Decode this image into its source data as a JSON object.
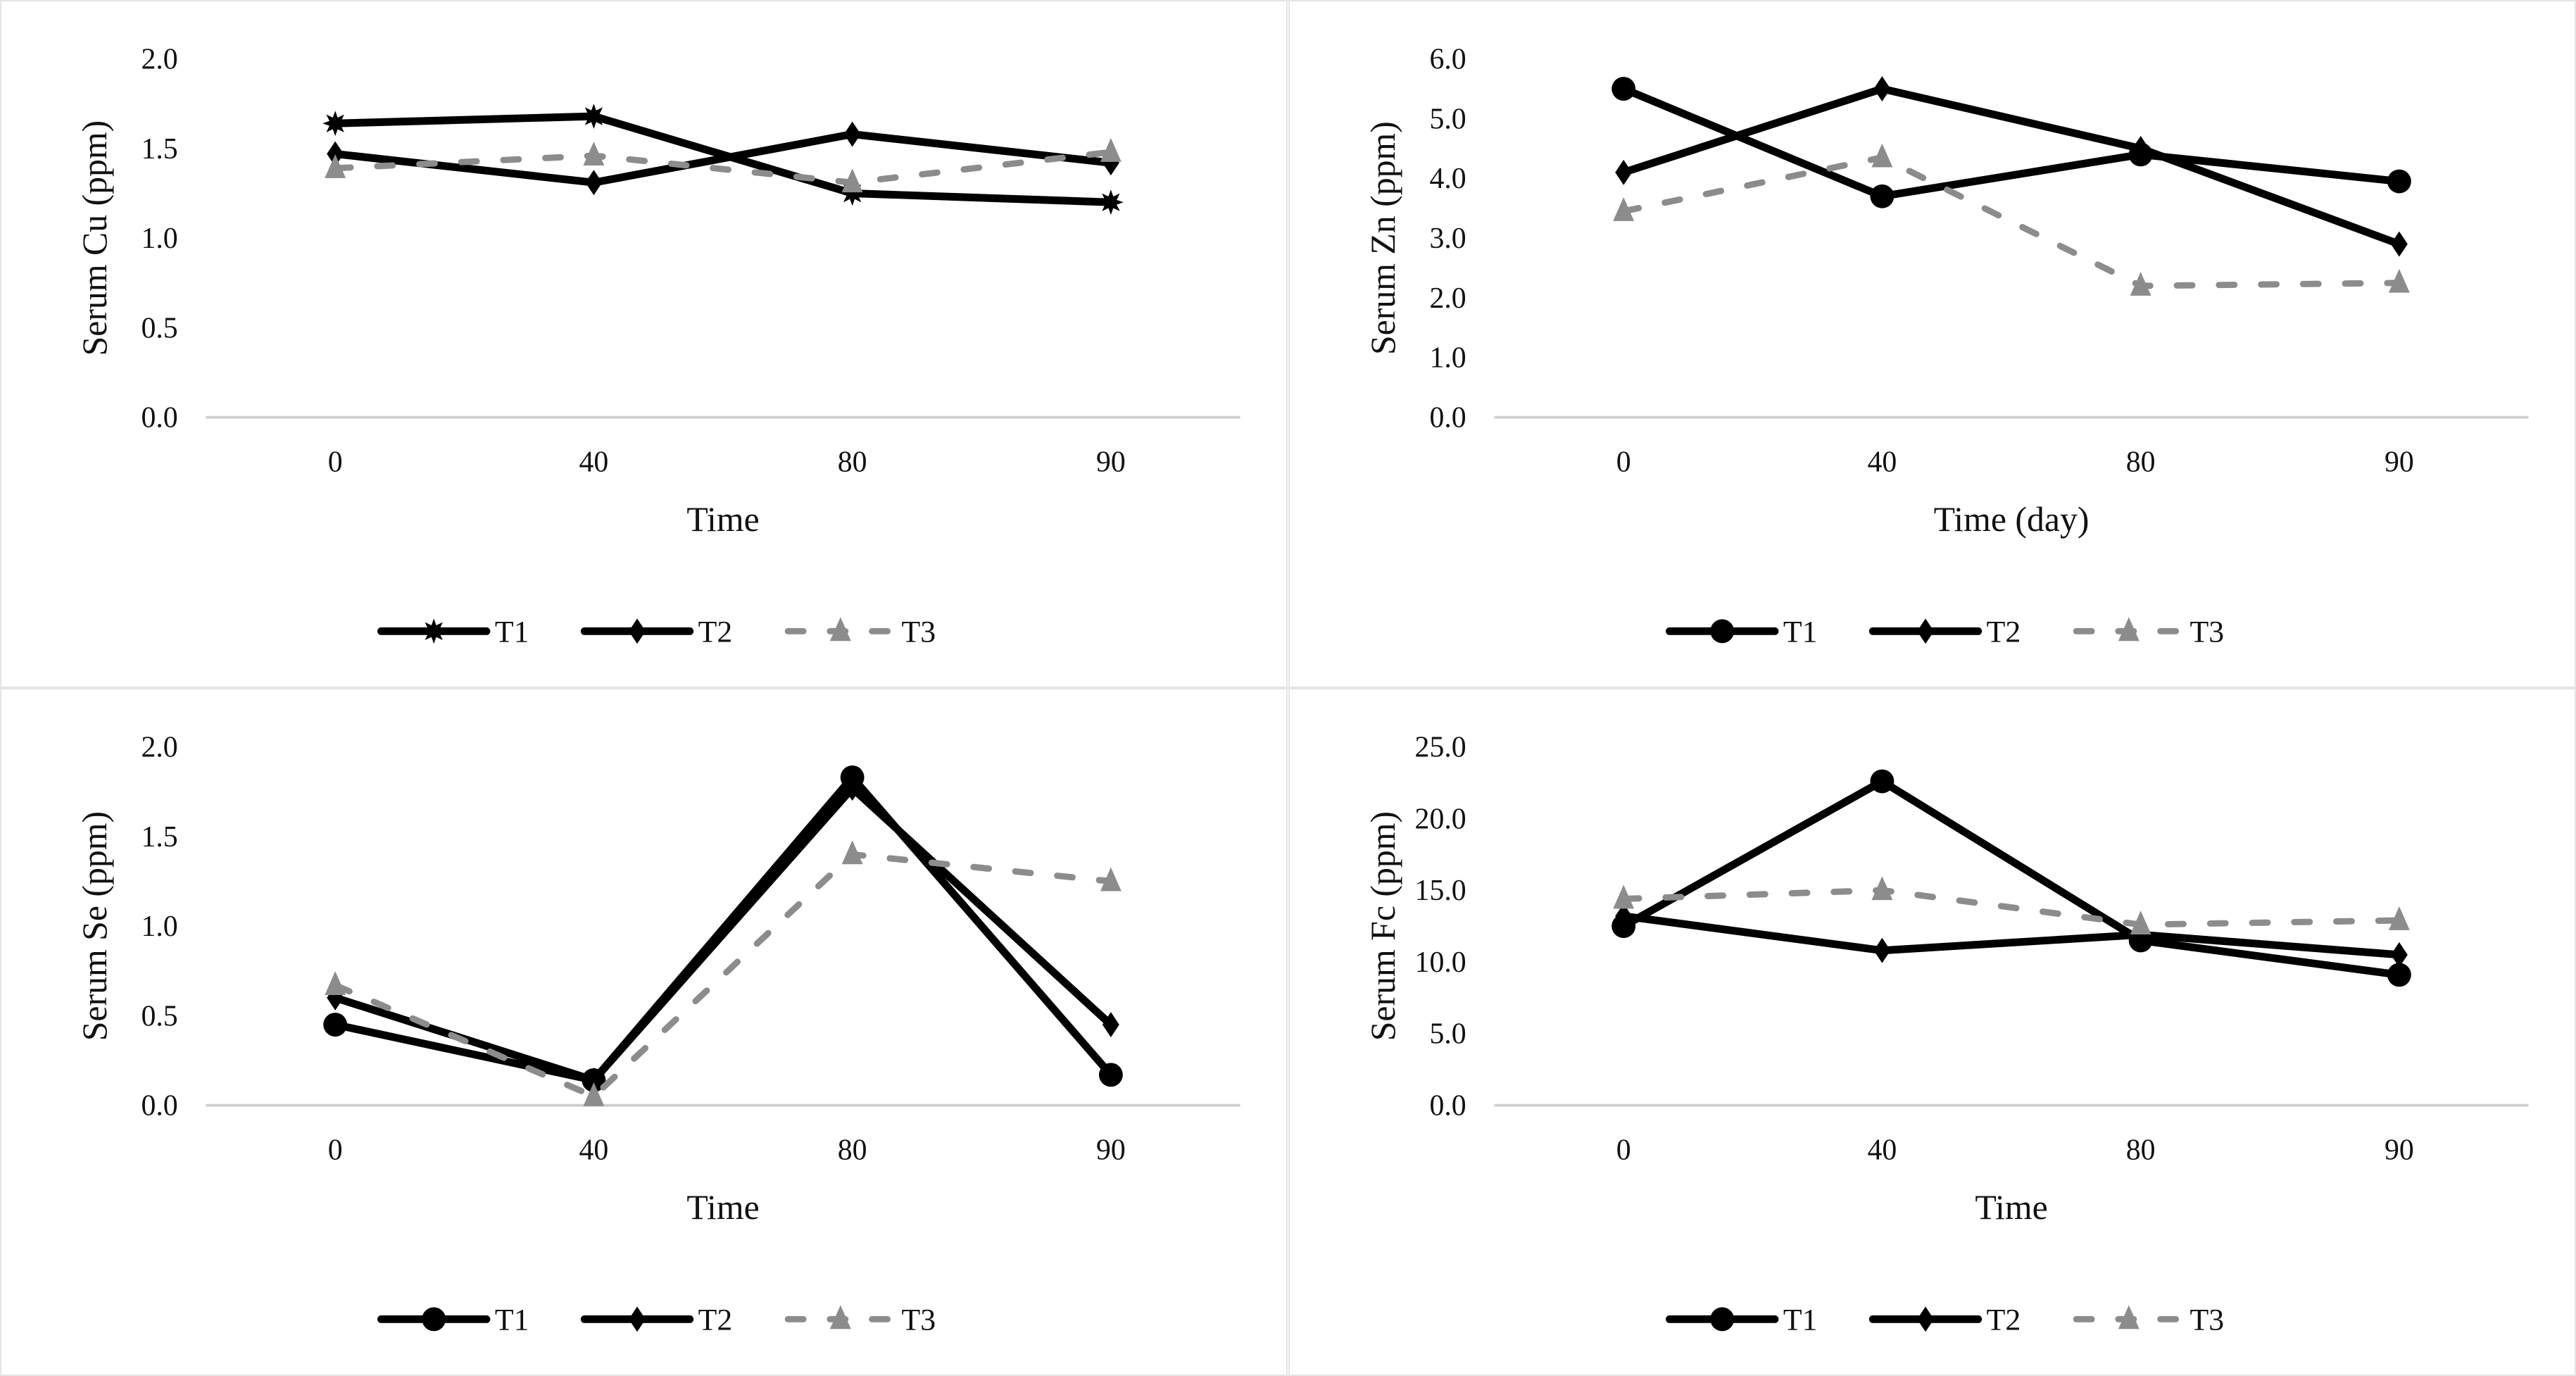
{
  "chart_data": [
    {
      "type": "line",
      "ylabel": "Serum Cu (ppm)",
      "xlabel": "Time",
      "categories": [
        "0",
        "40",
        "80",
        "90"
      ],
      "ylim": [
        0,
        2.0
      ],
      "yticks": [
        "0.0",
        "0.5",
        "1.0",
        "1.5",
        "2.0"
      ],
      "grid": false,
      "legend": "bottom",
      "series": [
        {
          "name": "T1",
          "marker": "star",
          "color": "#000000",
          "dash": false,
          "values": [
            1.64,
            1.68,
            1.25,
            1.2
          ]
        },
        {
          "name": "T2",
          "marker": "diamond",
          "color": "#000000",
          "dash": false,
          "values": [
            1.47,
            1.31,
            1.58,
            1.42
          ]
        },
        {
          "name": "T3",
          "marker": "triangle",
          "color": "#8c8c8c",
          "dash": true,
          "values": [
            1.39,
            1.46,
            1.31,
            1.48
          ]
        }
      ]
    },
    {
      "type": "line",
      "ylabel": "Serum Zn (ppm)",
      "xlabel": "Time (day)",
      "categories": [
        "0",
        "40",
        "80",
        "90"
      ],
      "ylim": [
        0,
        6.0
      ],
      "yticks": [
        "0.0",
        "1.0",
        "2.0",
        "3.0",
        "4.0",
        "5.0",
        "6.0"
      ],
      "grid": false,
      "legend": "bottom",
      "series": [
        {
          "name": "T1",
          "marker": "circle",
          "color": "#000000",
          "dash": false,
          "values": [
            5.5,
            3.7,
            4.4,
            3.95
          ]
        },
        {
          "name": "T2",
          "marker": "diamond",
          "color": "#000000",
          "dash": false,
          "values": [
            4.1,
            5.5,
            4.5,
            2.9
          ]
        },
        {
          "name": "T3",
          "marker": "triangle",
          "color": "#8c8c8c",
          "dash": true,
          "values": [
            3.45,
            4.35,
            2.2,
            2.25
          ]
        }
      ]
    },
    {
      "type": "line",
      "ylabel": "Serum Se (ppm)",
      "xlabel": "Time",
      "categories": [
        "0",
        "40",
        "80",
        "90"
      ],
      "ylim": [
        0,
        2.0
      ],
      "yticks": [
        "0.0",
        "0.5",
        "1.0",
        "1.5",
        "2.0"
      ],
      "grid": false,
      "legend": "bottom",
      "series": [
        {
          "name": "T1",
          "marker": "circle",
          "color": "#000000",
          "dash": false,
          "values": [
            0.45,
            0.14,
            1.83,
            0.17
          ]
        },
        {
          "name": "T2",
          "marker": "diamond",
          "color": "#000000",
          "dash": false,
          "values": [
            0.6,
            0.14,
            1.77,
            0.45
          ]
        },
        {
          "name": "T3",
          "marker": "triangle",
          "color": "#8c8c8c",
          "dash": true,
          "values": [
            0.67,
            0.05,
            1.4,
            1.25
          ]
        }
      ]
    },
    {
      "type": "line",
      "ylabel": "Serum Fc (ppm)",
      "xlabel": "Time",
      "categories": [
        "0",
        "40",
        "80",
        "90"
      ],
      "ylim": [
        0,
        25.0
      ],
      "yticks": [
        "0.0",
        "5.0",
        "10.0",
        "15.0",
        "20.0",
        "25.0"
      ],
      "grid": false,
      "legend": "bottom",
      "series": [
        {
          "name": "T1",
          "marker": "circle",
          "color": "#000000",
          "dash": false,
          "values": [
            12.5,
            22.6,
            11.5,
            9.1
          ]
        },
        {
          "name": "T2",
          "marker": "diamond",
          "color": "#000000",
          "dash": false,
          "values": [
            13.2,
            10.8,
            11.9,
            10.5
          ]
        },
        {
          "name": "T3",
          "marker": "triangle",
          "color": "#8c8c8c",
          "dash": true,
          "values": [
            14.4,
            15.0,
            12.6,
            12.9
          ]
        }
      ]
    }
  ]
}
